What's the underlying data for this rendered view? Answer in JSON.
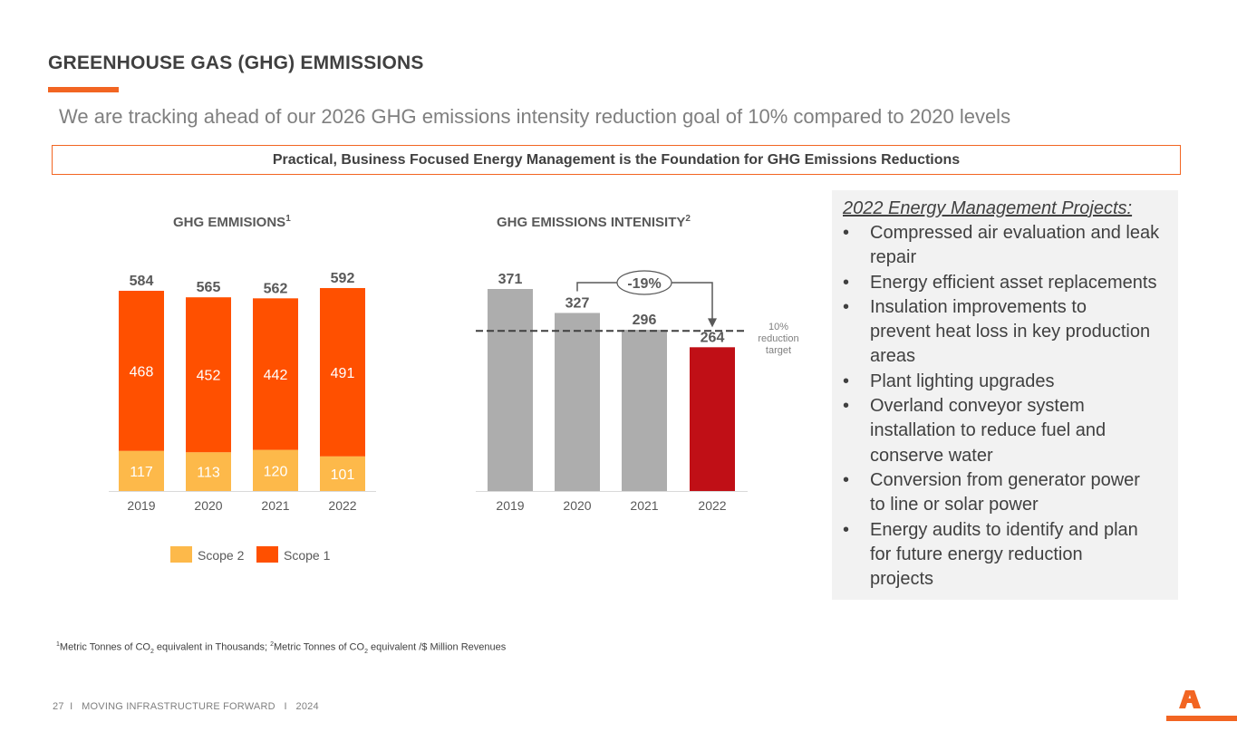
{
  "title": "GREENHOUSE GAS (GHG) EMMISSIONS",
  "subtitle": "We are tracking ahead of our 2026 GHG emissions intensity reduction goal of 10% compared to 2020 levels",
  "banner": "Practical, Business Focused Energy Management is the Foundation for GHG Emissions Reductions",
  "colors": {
    "scope1": "#ff5000",
    "scope2": "#fdb94a",
    "intensity_bar": "#adadad",
    "intensity_highlight": "#c00f16",
    "accent": "#f26522"
  },
  "chart_data": [
    {
      "type": "bar",
      "stacked": true,
      "title": "GHG EMMISIONS",
      "title_sup": "1",
      "categories": [
        "2019",
        "2020",
        "2021",
        "2022"
      ],
      "series": [
        {
          "name": "Scope 2",
          "values": [
            117,
            113,
            120,
            101
          ]
        },
        {
          "name": "Scope 1",
          "values": [
            468,
            452,
            442,
            491
          ]
        }
      ],
      "totals": [
        584,
        565,
        562,
        592
      ],
      "ylim": [
        0,
        600
      ],
      "legend": "bottom"
    },
    {
      "type": "bar",
      "title": "GHG EMISSIONS INTENISITY",
      "title_sup": "2",
      "categories": [
        "2019",
        "2020",
        "2021",
        "2022"
      ],
      "values": [
        371,
        327,
        296,
        264
      ],
      "ylim": [
        0,
        400
      ],
      "target_line": {
        "value": 294,
        "label_lines": [
          "10%",
          "reduction",
          "target"
        ]
      },
      "annotation": {
        "label": "-19%",
        "from": "2020",
        "to": "2022"
      }
    }
  ],
  "panel": {
    "heading": "2022 Energy Management Projects:",
    "bullet_char": "•",
    "items": [
      [
        "Compressed air evaluation and leak",
        "repair"
      ],
      [
        "Energy efficient asset replacements"
      ],
      [
        "Insulation improvements to",
        "prevent heat loss in key production",
        "areas"
      ],
      [
        "Plant lighting upgrades"
      ],
      [
        "Overland conveyor system",
        "installation to reduce fuel and",
        "conserve water"
      ],
      [
        "Conversion from generator power",
        "to line or solar power"
      ],
      [
        "Energy audits to identify and plan",
        "for future energy reduction",
        "projects"
      ]
    ]
  },
  "footnote": {
    "sup1": "1",
    "t1": "Metric Tonnes of CO",
    "sub1": "2",
    "t2": " equivalent in Thousands; ",
    "sup2": "2",
    "t3": "Metric Tonnes of CO",
    "sub2": "2",
    "t4": " equivalent /$ Million Revenues"
  },
  "footer": "27  I   MOVING INFRASTRUCTURE FORWARD   I   2024"
}
